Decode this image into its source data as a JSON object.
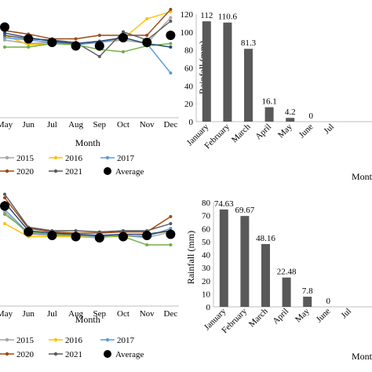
{
  "chart_data": [
    {
      "type": "line",
      "x": [
        "May",
        "Jun",
        "Jul",
        "Aug",
        "Sep",
        "Oct",
        "Nov",
        "Dec"
      ],
      "xlabel": "Month",
      "series": [
        {
          "name": "2015",
          "color": "#a5a5a5",
          "marker": "circle",
          "values": [
            0.66,
            0.63,
            0.64,
            0.62,
            0.64,
            0.66,
            0.63,
            0.85
          ]
        },
        {
          "name": "2016",
          "color": "#ffc000",
          "marker": "circle",
          "values": [
            0.7,
            0.62,
            0.63,
            0.63,
            0.65,
            0.67,
            0.84,
            0.9
          ]
        },
        {
          "name": "2017",
          "color": "#5b9bd5",
          "marker": "circle",
          "values": [
            0.68,
            0.66,
            0.64,
            0.62,
            0.64,
            0.68,
            0.63,
            0.38
          ]
        },
        {
          "name": "2020",
          "color": "#9e480e",
          "marker": "circle",
          "values": [
            0.74,
            0.71,
            0.67,
            0.67,
            0.7,
            0.7,
            0.7,
            0.92
          ]
        },
        {
          "name": "2021",
          "color": "#595959",
          "marker": "circle",
          "values": [
            0.7,
            0.67,
            0.66,
            0.64,
            0.52,
            0.73,
            0.66,
            0.82
          ]
        },
        {
          "name": "",
          "color": "#70ad47",
          "marker": "circle",
          "values": [
            0.6,
            0.6,
            0.63,
            0.62,
            0.58,
            0.56,
            0.61,
            0.63
          ]
        },
        {
          "name": "",
          "color": "#264478",
          "marker": "circle",
          "values": [
            0.72,
            0.68,
            0.65,
            0.63,
            0.65,
            0.68,
            0.63,
            0.6
          ]
        },
        {
          "name": "Average",
          "color": "#000000",
          "marker": "dot",
          "values": [
            0.77,
            0.67,
            0.64,
            0.61,
            0.61,
            0.68,
            0.64,
            0.7
          ]
        }
      ],
      "ylim": [
        0,
        1
      ],
      "legend": "bottom"
    },
    {
      "type": "bar",
      "categories": [
        "January",
        "February",
        "March",
        "April",
        "May",
        "June",
        "July"
      ],
      "category_labels": [
        "January",
        "February",
        "March",
        "April",
        "May",
        "June",
        "Jul"
      ],
      "values": [
        112,
        110.6,
        81.3,
        16.1,
        4.2,
        0,
        null
      ],
      "labels": [
        "112",
        "110.6",
        "81.3",
        "16.1",
        "4.2",
        "0",
        ""
      ],
      "ylabel": "Rainfall (mm)",
      "xlabel": "Month",
      "ylim": [
        0,
        120
      ],
      "yticks": [
        0,
        20,
        40,
        60,
        80,
        100,
        120
      ],
      "bar_color": "#595959",
      "grid": false
    },
    {
      "type": "line",
      "x": [
        "May",
        "Jun",
        "Jul",
        "Aug",
        "Sep",
        "Oct",
        "Nov",
        "Dec"
      ],
      "xlabel": "Month",
      "series": [
        {
          "name": "2015",
          "color": "#a5a5a5",
          "marker": "circle",
          "values": [
            0.8,
            0.61,
            0.6,
            0.59,
            0.58,
            0.6,
            0.58,
            0.63
          ]
        },
        {
          "name": "2016",
          "color": "#ffc000",
          "marker": "circle",
          "values": [
            0.7,
            0.59,
            0.59,
            0.59,
            0.59,
            0.59,
            0.6,
            0.64
          ]
        },
        {
          "name": "2017",
          "color": "#5b9bd5",
          "marker": "circle",
          "values": [
            0.82,
            0.62,
            0.61,
            0.6,
            0.59,
            0.6,
            0.59,
            0.66
          ]
        },
        {
          "name": "2020",
          "color": "#9e480e",
          "marker": "circle",
          "values": [
            0.92,
            0.66,
            0.63,
            0.62,
            0.62,
            0.63,
            0.63,
            0.76
          ]
        },
        {
          "name": "2021",
          "color": "#595959",
          "marker": "circle",
          "values": [
            0.95,
            0.67,
            0.64,
            0.64,
            0.63,
            0.64,
            0.64,
            0.7
          ]
        },
        {
          "name": "",
          "color": "#70ad47",
          "marker": "circle",
          "values": [
            0.78,
            0.63,
            0.61,
            0.6,
            0.6,
            0.59,
            0.52,
            0.52
          ]
        },
        {
          "name": "",
          "color": "#264478",
          "marker": "circle",
          "values": [
            0.88,
            0.64,
            0.62,
            0.61,
            0.6,
            0.61,
            0.61,
            0.64
          ]
        },
        {
          "name": "Average",
          "color": "#000000",
          "marker": "dot",
          "values": [
            0.85,
            0.63,
            0.6,
            0.59,
            0.58,
            0.59,
            0.6,
            0.61
          ]
        }
      ],
      "ylim": [
        0,
        1
      ],
      "legend": "bottom"
    },
    {
      "type": "bar",
      "categories": [
        "January",
        "February",
        "March",
        "April",
        "May",
        "June",
        "July"
      ],
      "category_labels": [
        "January",
        "February",
        "March",
        "April",
        "May",
        "June",
        "Jul"
      ],
      "values": [
        74.63,
        69.67,
        48.16,
        22.48,
        7.8,
        0,
        null
      ],
      "labels": [
        "74.63",
        "69.67",
        "48.16",
        "22.48",
        "7.8",
        "0",
        ""
      ],
      "ylabel": "Rainfall (mm)",
      "xlabel": "Month",
      "ylim": [
        0,
        80
      ],
      "yticks": [
        0,
        10,
        20,
        30,
        40,
        50,
        60,
        70,
        80
      ],
      "bar_color": "#595959",
      "grid": false
    }
  ],
  "line_legend": [
    {
      "name": "2015",
      "color": "#a5a5a5",
      "marker": "circle"
    },
    {
      "name": "2016",
      "color": "#ffc000",
      "marker": "circle"
    },
    {
      "name": "2017",
      "color": "#5b9bd5",
      "marker": "circle"
    },
    {
      "name": "2020",
      "color": "#9e480e",
      "marker": "circle"
    },
    {
      "name": "2021",
      "color": "#595959",
      "marker": "circle"
    },
    {
      "name": "Average",
      "color": "#000000",
      "marker": "dot"
    }
  ]
}
